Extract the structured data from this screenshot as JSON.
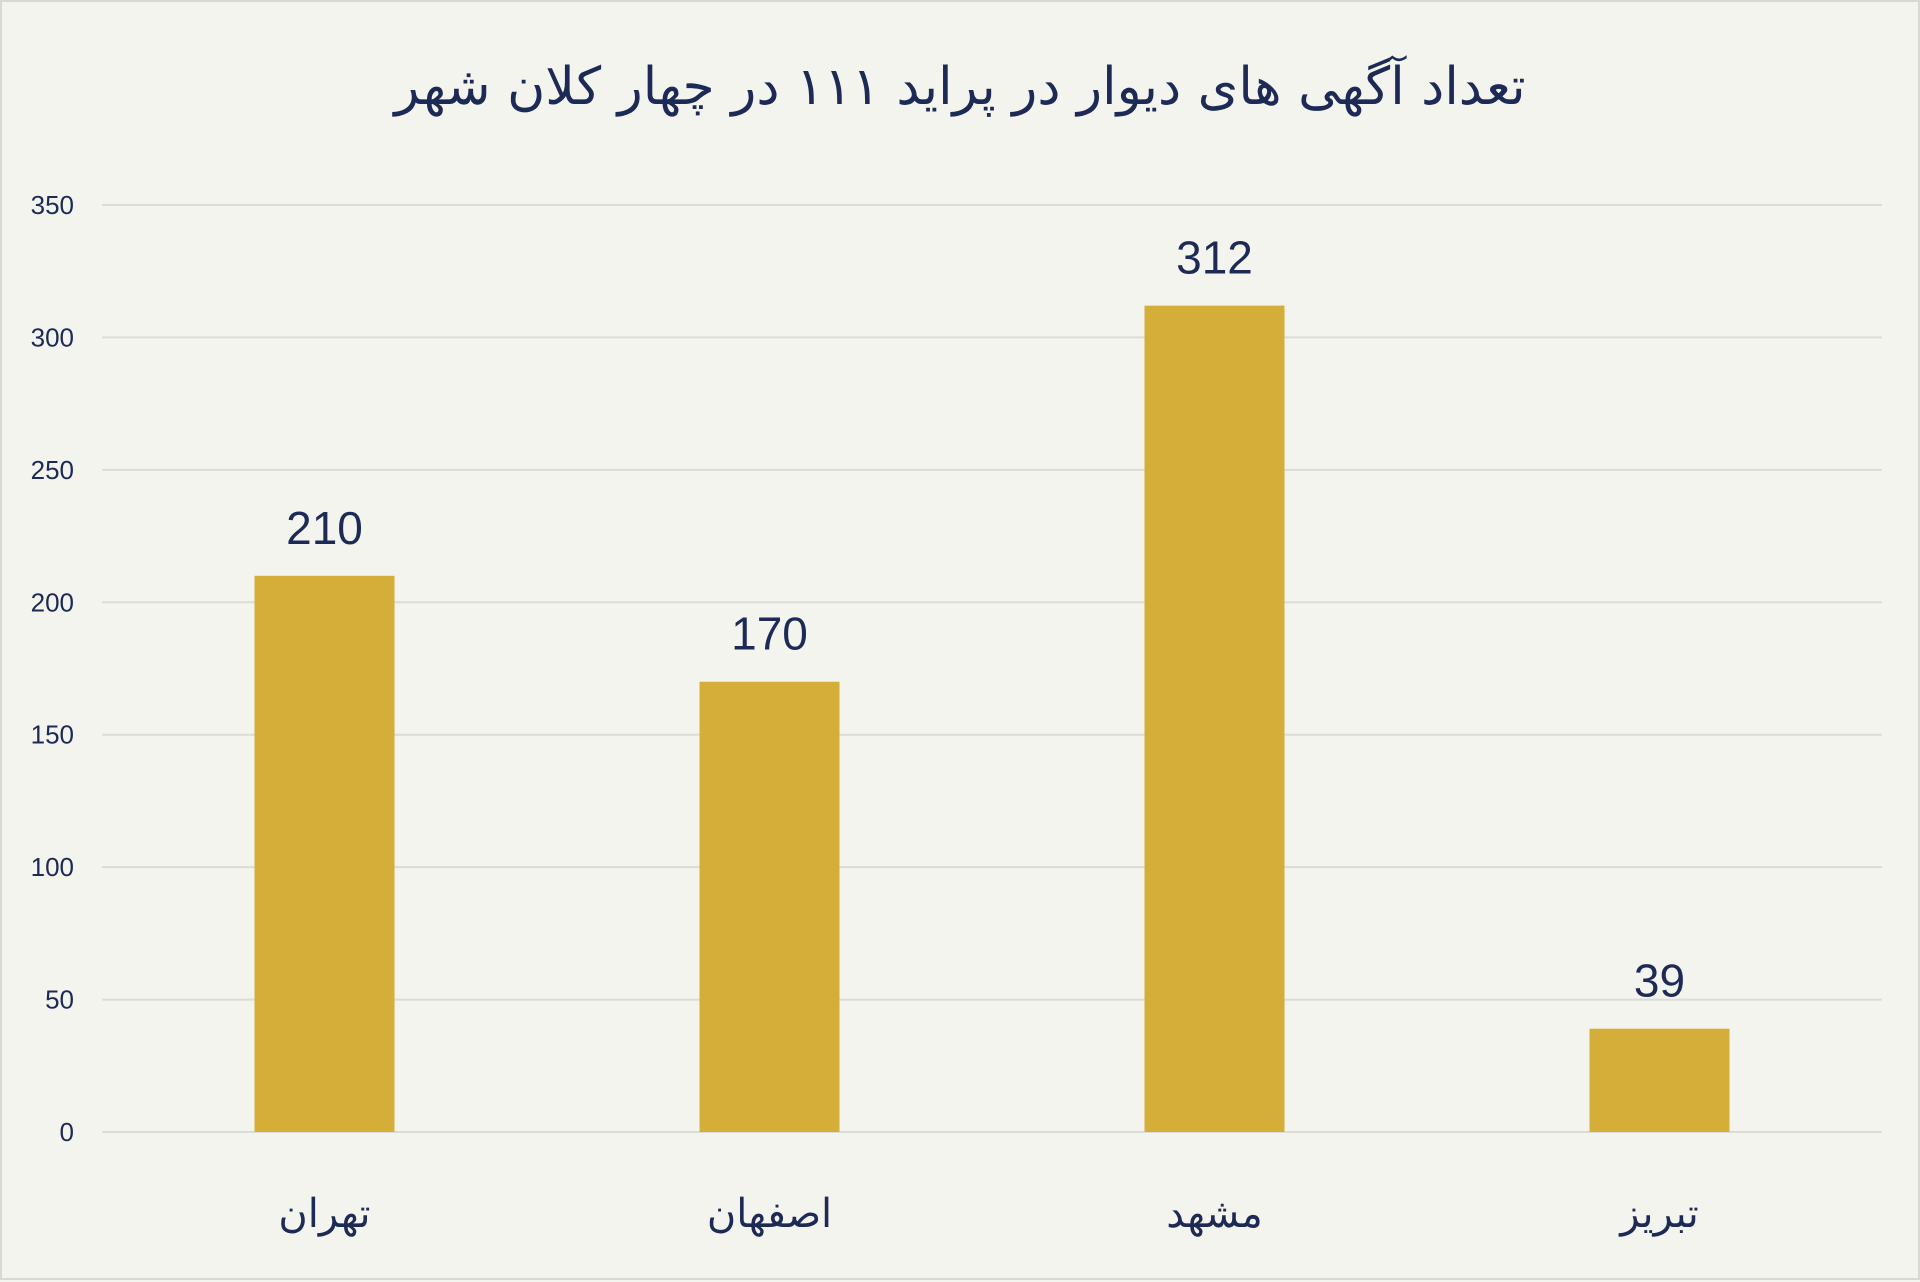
{
  "chart_data": {
    "type": "bar",
    "title": "تعداد آگهی های دیوار در پراید ۱۱۱ در چهار کلان شهر",
    "categories": [
      "تهران",
      "اصفهان",
      "مشهد",
      "تبریز"
    ],
    "values": [
      210,
      170,
      312,
      39
    ],
    "data_labels": [
      "210",
      "170",
      "312",
      "39"
    ],
    "yticks": [
      0,
      50,
      100,
      150,
      200,
      250,
      300,
      350
    ],
    "ylim": [
      0,
      350
    ],
    "xlabel": "",
    "ylabel": "",
    "grid": true,
    "legend": "none",
    "bar_color": "#d4ae38"
  }
}
